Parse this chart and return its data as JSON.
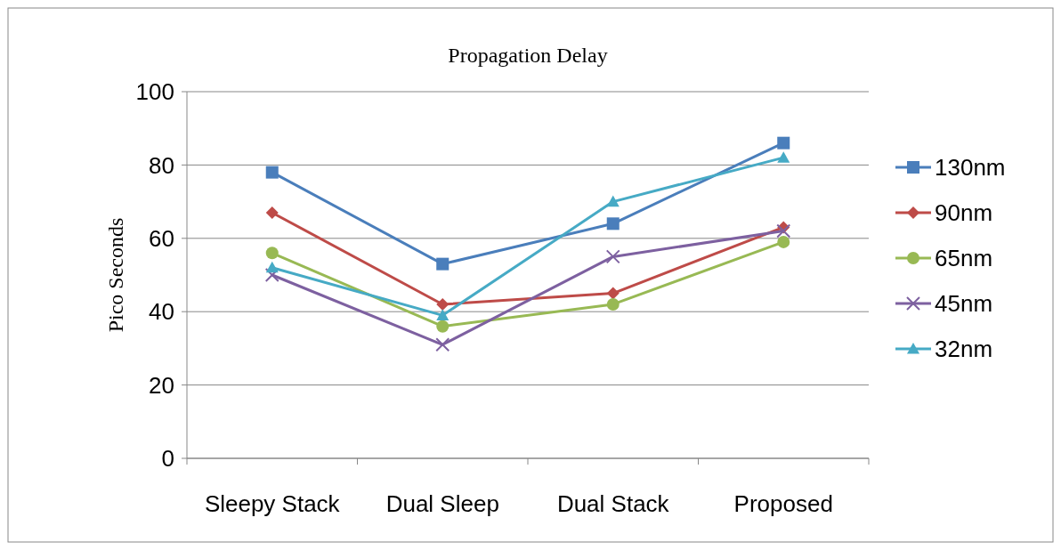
{
  "chart_data": {
    "type": "line",
    "title": "Propagation Delay",
    "ylabel": "Pico Seconds",
    "categories": [
      "Sleepy Stack",
      "Dual Sleep",
      "Dual Stack",
      "Proposed"
    ],
    "ylim": [
      0,
      100
    ],
    "yticks": [
      0,
      20,
      40,
      60,
      80,
      100
    ],
    "grid": "y",
    "legend": "right",
    "series": [
      {
        "name": "130nm",
        "color": "#4a7ebb",
        "marker": "square",
        "values": [
          78,
          53,
          64,
          86
        ]
      },
      {
        "name": "90nm",
        "color": "#be4b48",
        "marker": "diamond",
        "values": [
          67,
          42,
          45,
          63
        ]
      },
      {
        "name": "65nm",
        "color": "#98b954",
        "marker": "circle",
        "values": [
          56,
          36,
          42,
          59
        ]
      },
      {
        "name": "45nm",
        "color": "#7d60a0",
        "marker": "cross",
        "values": [
          50,
          31,
          55,
          62
        ]
      },
      {
        "name": "32nm",
        "color": "#46aac5",
        "marker": "triangle",
        "values": [
          52,
          39,
          70,
          82
        ]
      }
    ]
  }
}
